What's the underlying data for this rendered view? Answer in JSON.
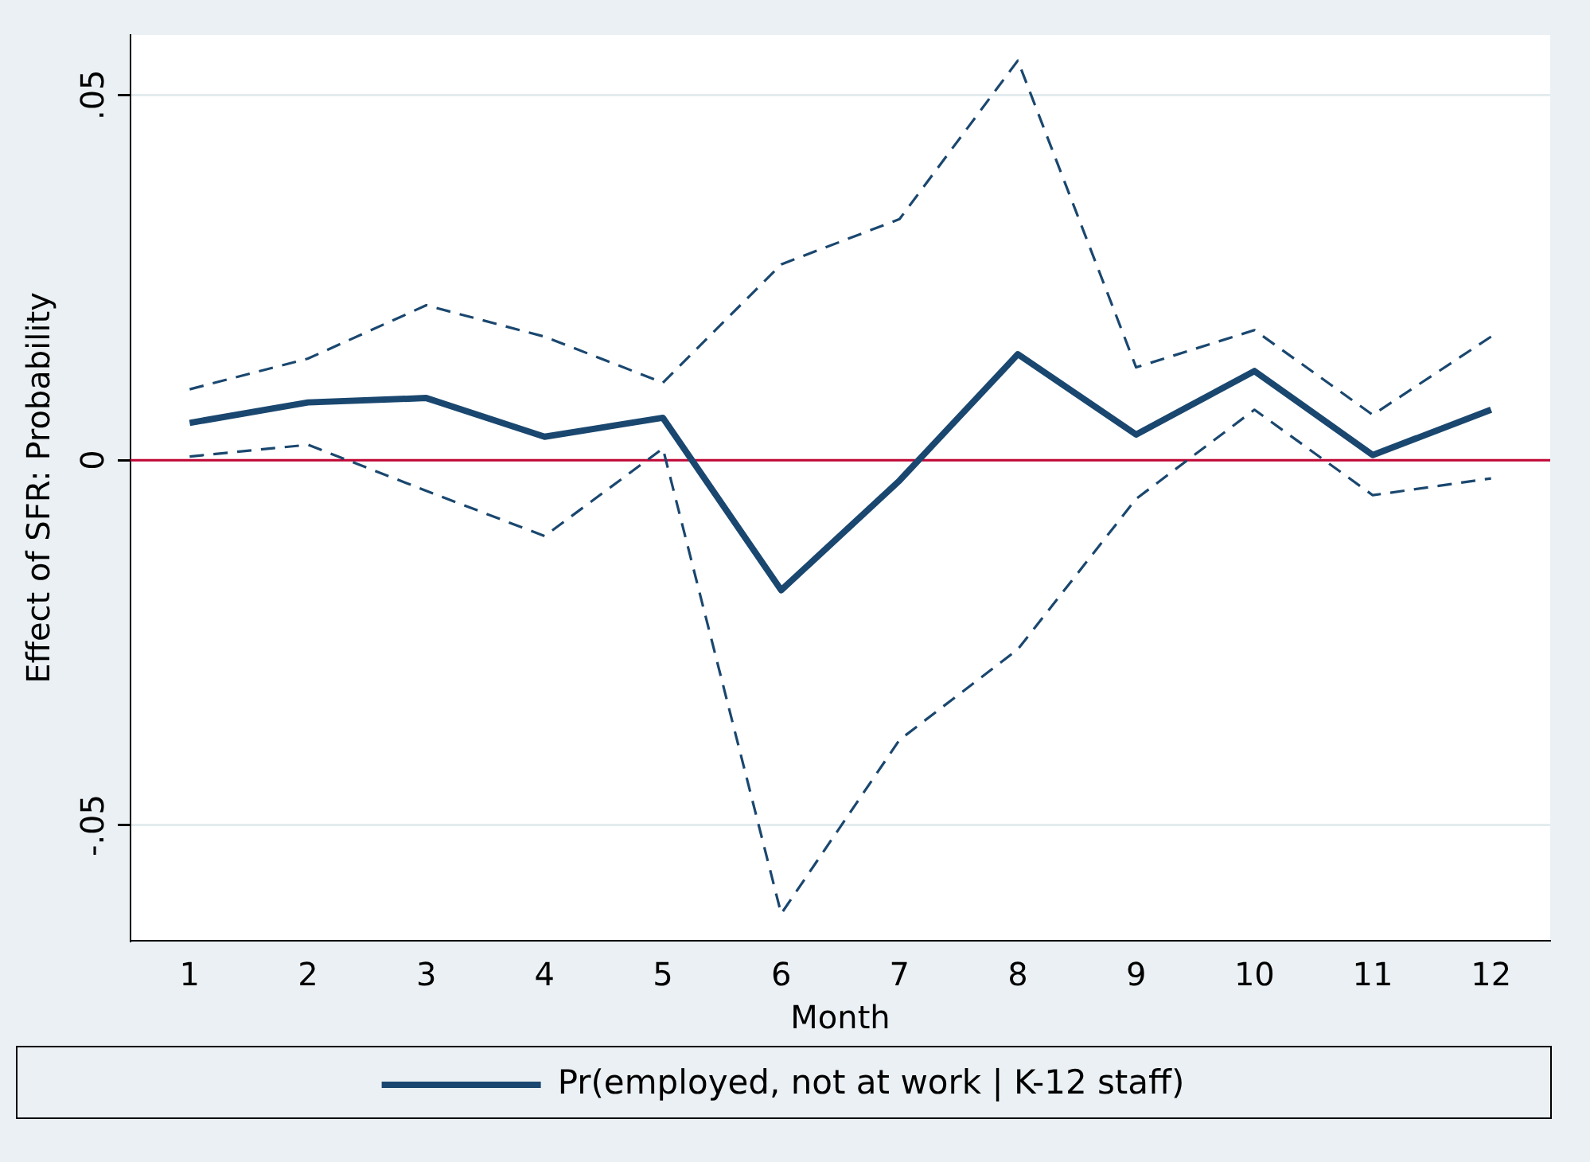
{
  "chart_data": {
    "type": "line",
    "xlabel": "Month",
    "ylabel": "Effect of SFR: Probability",
    "x": [
      1,
      2,
      3,
      4,
      5,
      6,
      7,
      8,
      9,
      10,
      11,
      12
    ],
    "series": [
      {
        "name": "Pr(employed, not at work | K-12 staff)",
        "color": "#1a476f",
        "values": [
          0.0051,
          0.0079,
          0.0085,
          0.0032,
          0.0058,
          -0.0178,
          -0.0028,
          0.0145,
          0.0035,
          0.0122,
          0.0007,
          0.0069
        ]
      },
      {
        "color": "#1a476f",
        "line_style": "dashed",
        "values": [
          0.0097,
          0.0139,
          0.0212,
          0.0169,
          0.0106,
          0.0268,
          0.033,
          0.0547,
          0.0127,
          0.0178,
          0.0062,
          0.0169
        ]
      },
      {
        "color": "#1a476f",
        "line_style": "dashed",
        "values": [
          0.0005,
          0.0021,
          -0.0042,
          -0.0104,
          0.0016,
          -0.0621,
          -0.0383,
          -0.0259,
          -0.0053,
          0.0069,
          -0.0048,
          -0.0025
        ]
      }
    ],
    "xlim": [
      0.5,
      12.5
    ],
    "xticks": [
      1,
      2,
      3,
      4,
      5,
      6,
      7,
      8,
      9,
      10,
      11,
      12
    ],
    "ylim": [
      -0.0658,
      0.0582
    ],
    "yticks": [
      {
        "value": -0.05,
        "label": "-.05"
      },
      {
        "value": 0,
        "label": "0"
      },
      {
        "value": 0.05,
        "label": ".05"
      }
    ],
    "ref_lines": [
      {
        "axis": "y",
        "value": 0,
        "color": "#c10534"
      }
    ],
    "grid": "y",
    "legend": "bottom",
    "marker": "none",
    "line_style": "solid"
  }
}
